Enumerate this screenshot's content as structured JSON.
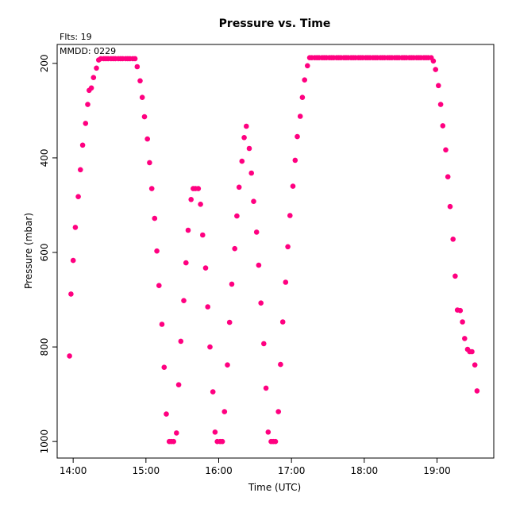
{
  "chart_data": {
    "type": "scatter",
    "title": "Pressure  vs. Time",
    "xlabel": "Time (UTC)",
    "ylabel": "Pressure (mbar)",
    "annotations": [
      "Flts: 19",
      "MMDD: 0229"
    ],
    "x_tick_labels": [
      "14:00",
      "15:00",
      "16:00",
      "17:00",
      "18:00",
      "19:00"
    ],
    "x_tick_hours": [
      14,
      15,
      16,
      17,
      18,
      19
    ],
    "y_ticks": [
      200,
      400,
      600,
      800,
      1000
    ],
    "xlim_hours": [
      13.78,
      19.78
    ],
    "ylim": [
      1035,
      160
    ],
    "y_reversed": true,
    "grid": false,
    "marker_color": "#ff0080",
    "points": [
      [
        13.95,
        819
      ],
      [
        13.97,
        688
      ],
      [
        14.0,
        617
      ],
      [
        14.03,
        547
      ],
      [
        14.07,
        482
      ],
      [
        14.1,
        425
      ],
      [
        14.13,
        373
      ],
      [
        14.17,
        327
      ],
      [
        14.2,
        287
      ],
      [
        14.22,
        257
      ],
      [
        14.25,
        252
      ],
      [
        14.28,
        230
      ],
      [
        14.32,
        210
      ],
      [
        14.35,
        193
      ],
      [
        14.38,
        190
      ],
      [
        14.42,
        190
      ],
      [
        14.45,
        190
      ],
      [
        14.48,
        190
      ],
      [
        14.52,
        190
      ],
      [
        14.55,
        190
      ],
      [
        14.58,
        190
      ],
      [
        14.62,
        190
      ],
      [
        14.65,
        190
      ],
      [
        14.68,
        190
      ],
      [
        14.72,
        190
      ],
      [
        14.75,
        190
      ],
      [
        14.78,
        190
      ],
      [
        14.82,
        190
      ],
      [
        14.85,
        190
      ],
      [
        14.88,
        207
      ],
      [
        14.92,
        237
      ],
      [
        14.95,
        272
      ],
      [
        14.98,
        313
      ],
      [
        15.02,
        360
      ],
      [
        15.05,
        410
      ],
      [
        15.08,
        465
      ],
      [
        15.12,
        528
      ],
      [
        15.15,
        597
      ],
      [
        15.18,
        670
      ],
      [
        15.22,
        752
      ],
      [
        15.25,
        843
      ],
      [
        15.28,
        942
      ],
      [
        15.32,
        1000
      ],
      [
        15.35,
        1000
      ],
      [
        15.38,
        1000
      ],
      [
        15.42,
        982
      ],
      [
        15.45,
        880
      ],
      [
        15.48,
        788
      ],
      [
        15.52,
        702
      ],
      [
        15.55,
        622
      ],
      [
        15.58,
        553
      ],
      [
        15.62,
        488
      ],
      [
        15.65,
        465
      ],
      [
        15.68,
        465
      ],
      [
        15.72,
        465
      ],
      [
        15.75,
        498
      ],
      [
        15.78,
        563
      ],
      [
        15.82,
        633
      ],
      [
        15.85,
        715
      ],
      [
        15.88,
        800
      ],
      [
        15.92,
        895
      ],
      [
        15.95,
        980
      ],
      [
        15.98,
        1000
      ],
      [
        16.02,
        1000
      ],
      [
        16.05,
        1000
      ],
      [
        16.08,
        937
      ],
      [
        16.12,
        838
      ],
      [
        16.15,
        748
      ],
      [
        16.18,
        667
      ],
      [
        16.22,
        592
      ],
      [
        16.25,
        523
      ],
      [
        16.28,
        462
      ],
      [
        16.32,
        407
      ],
      [
        16.35,
        357
      ],
      [
        16.38,
        333
      ],
      [
        16.42,
        380
      ],
      [
        16.45,
        432
      ],
      [
        16.48,
        492
      ],
      [
        16.52,
        557
      ],
      [
        16.55,
        627
      ],
      [
        16.58,
        707
      ],
      [
        16.62,
        793
      ],
      [
        16.65,
        887
      ],
      [
        16.68,
        980
      ],
      [
        16.72,
        1000
      ],
      [
        16.75,
        1000
      ],
      [
        16.78,
        1000
      ],
      [
        16.82,
        937
      ],
      [
        16.85,
        837
      ],
      [
        16.88,
        747
      ],
      [
        16.92,
        663
      ],
      [
        16.95,
        588
      ],
      [
        16.98,
        522
      ],
      [
        17.02,
        460
      ],
      [
        17.05,
        405
      ],
      [
        17.08,
        355
      ],
      [
        17.12,
        312
      ],
      [
        17.15,
        272
      ],
      [
        17.18,
        235
      ],
      [
        17.22,
        205
      ],
      [
        17.25,
        188
      ],
      [
        17.28,
        188
      ],
      [
        17.32,
        188
      ],
      [
        17.35,
        188
      ],
      [
        17.38,
        188
      ],
      [
        17.42,
        188
      ],
      [
        17.45,
        188
      ],
      [
        17.48,
        188
      ],
      [
        17.52,
        188
      ],
      [
        17.55,
        188
      ],
      [
        17.58,
        188
      ],
      [
        17.62,
        188
      ],
      [
        17.65,
        188
      ],
      [
        17.68,
        188
      ],
      [
        17.72,
        188
      ],
      [
        17.75,
        188
      ],
      [
        17.78,
        188
      ],
      [
        17.82,
        188
      ],
      [
        17.85,
        188
      ],
      [
        17.88,
        188
      ],
      [
        17.92,
        188
      ],
      [
        17.95,
        188
      ],
      [
        17.98,
        188
      ],
      [
        18.02,
        188
      ],
      [
        18.05,
        188
      ],
      [
        18.08,
        188
      ],
      [
        18.12,
        188
      ],
      [
        18.15,
        188
      ],
      [
        18.18,
        188
      ],
      [
        18.22,
        188
      ],
      [
        18.25,
        188
      ],
      [
        18.28,
        188
      ],
      [
        18.32,
        188
      ],
      [
        18.35,
        188
      ],
      [
        18.38,
        188
      ],
      [
        18.42,
        188
      ],
      [
        18.45,
        188
      ],
      [
        18.48,
        188
      ],
      [
        18.52,
        188
      ],
      [
        18.55,
        188
      ],
      [
        18.58,
        188
      ],
      [
        18.62,
        188
      ],
      [
        18.65,
        188
      ],
      [
        18.68,
        188
      ],
      [
        18.72,
        188
      ],
      [
        18.75,
        188
      ],
      [
        18.78,
        188
      ],
      [
        18.82,
        188
      ],
      [
        18.85,
        188
      ],
      [
        18.88,
        188
      ],
      [
        18.92,
        188
      ],
      [
        18.95,
        195
      ],
      [
        18.98,
        213
      ],
      [
        19.02,
        247
      ],
      [
        19.05,
        287
      ],
      [
        19.08,
        332
      ],
      [
        19.12,
        383
      ],
      [
        19.15,
        440
      ],
      [
        19.18,
        503
      ],
      [
        19.22,
        572
      ],
      [
        19.25,
        650
      ],
      [
        19.28,
        722
      ],
      [
        19.32,
        723
      ],
      [
        19.35,
        747
      ],
      [
        19.38,
        782
      ],
      [
        19.42,
        805
      ],
      [
        19.45,
        810
      ],
      [
        19.48,
        810
      ],
      [
        19.52,
        838
      ],
      [
        19.55,
        893
      ]
    ]
  }
}
